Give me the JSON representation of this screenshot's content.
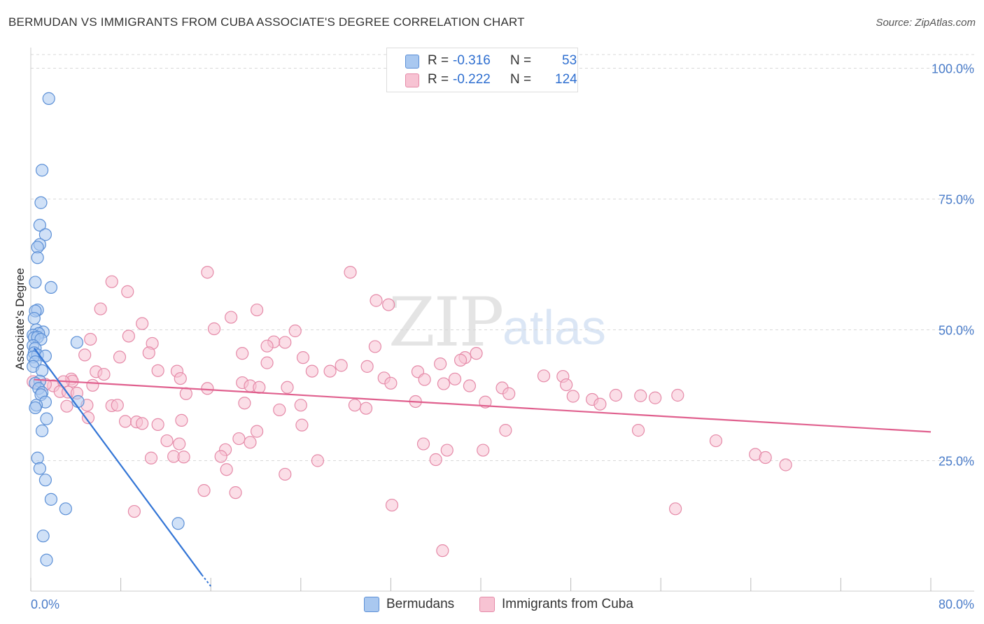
{
  "title": "BERMUDAN VS IMMIGRANTS FROM CUBA ASSOCIATE'S DEGREE CORRELATION CHART",
  "source": "Source: ZipAtlas.com",
  "watermark": {
    "zip": "ZIP",
    "atlas": "atlas"
  },
  "legend": {
    "rows": [
      {
        "r_label": "R =",
        "r_value": "-0.316",
        "n_label": "N =",
        "n_value": "53"
      },
      {
        "r_label": "R =",
        "r_value": "-0.222",
        "n_label": "N =",
        "n_value": "124"
      }
    ]
  },
  "bottom_legend": {
    "series1": "Bermudans",
    "series2": "Immigrants from Cuba"
  },
  "colors": {
    "blue_fill": "#a9c8f0",
    "blue_stroke": "#5b8fd6",
    "blue_line": "#3375d6",
    "pink_fill": "#f7c3d3",
    "pink_stroke": "#e58aa8",
    "pink_line": "#e0608e",
    "grid": "#d8d8d8",
    "tick_text": "#4a7cc9"
  },
  "chart_data": {
    "type": "scatter",
    "title": "BERMUDAN VS IMMIGRANTS FROM CUBA ASSOCIATE'S DEGREE CORRELATION CHART",
    "ylabel": "Associate's Degree",
    "xlim": [
      0,
      80
    ],
    "ylim": [
      0,
      102
    ],
    "x_ticks": [
      "0.0%",
      "80.0%"
    ],
    "y_ticks": [
      {
        "value": 25,
        "label": "25.0%"
      },
      {
        "value": 50,
        "label": "50.0%"
      },
      {
        "value": 75,
        "label": "75.0%"
      },
      {
        "value": 100,
        "label": "100.0%"
      }
    ],
    "grid": true,
    "series": [
      {
        "name": "Bermudans",
        "r": -0.316,
        "n": 53,
        "trend": {
          "x0": 0.3,
          "y0": 46.5,
          "x1": 15.2,
          "y1": 3.2,
          "dash_x1": 16.0,
          "dash_y1": 1.0
        },
        "points": [
          [
            1.6,
            94.2
          ],
          [
            1.0,
            80.5
          ],
          [
            0.9,
            74.3
          ],
          [
            0.8,
            70.0
          ],
          [
            1.3,
            68.2
          ],
          [
            0.8,
            66.3
          ],
          [
            0.6,
            65.8
          ],
          [
            0.6,
            63.8
          ],
          [
            0.4,
            59.1
          ],
          [
            1.8,
            58.1
          ],
          [
            0.6,
            53.8
          ],
          [
            0.4,
            53.6
          ],
          [
            0.3,
            52.2
          ],
          [
            0.5,
            50.0
          ],
          [
            1.1,
            49.6
          ],
          [
            0.7,
            49.3
          ],
          [
            0.2,
            49.0
          ],
          [
            0.3,
            48.5
          ],
          [
            0.6,
            48.6
          ],
          [
            0.9,
            48.2
          ],
          [
            4.1,
            47.6
          ],
          [
            0.2,
            47.0
          ],
          [
            0.4,
            46.5
          ],
          [
            0.3,
            45.6
          ],
          [
            0.6,
            45.2
          ],
          [
            0.2,
            44.8
          ],
          [
            1.3,
            45.0
          ],
          [
            0.4,
            43.9
          ],
          [
            0.2,
            43.0
          ],
          [
            1.0,
            42.2
          ],
          [
            0.8,
            40.2
          ],
          [
            0.4,
            39.8
          ],
          [
            0.7,
            38.8
          ],
          [
            1.0,
            38.0
          ],
          [
            0.9,
            37.6
          ],
          [
            1.3,
            36.2
          ],
          [
            4.2,
            36.3
          ],
          [
            0.5,
            35.6
          ],
          [
            0.4,
            35.1
          ],
          [
            1.4,
            33.0
          ],
          [
            1.0,
            30.7
          ],
          [
            0.6,
            25.5
          ],
          [
            0.8,
            23.5
          ],
          [
            1.3,
            21.3
          ],
          [
            1.8,
            17.6
          ],
          [
            3.1,
            15.8
          ],
          [
            13.1,
            13.0
          ],
          [
            1.1,
            10.6
          ],
          [
            1.4,
            6.0
          ]
        ]
      },
      {
        "name": "Immigrants from Cuba",
        "r": -0.222,
        "n": 124,
        "trend": {
          "x0": 0.3,
          "y0": 40.5,
          "x1": 80.0,
          "y1": 30.5
        },
        "points": [
          [
            15.7,
            61.0
          ],
          [
            28.4,
            61.0
          ],
          [
            7.2,
            59.2
          ],
          [
            8.6,
            57.3
          ],
          [
            30.7,
            55.6
          ],
          [
            31.8,
            54.8
          ],
          [
            6.2,
            54.0
          ],
          [
            20.1,
            53.8
          ],
          [
            17.8,
            52.4
          ],
          [
            9.9,
            51.2
          ],
          [
            16.3,
            50.2
          ],
          [
            23.5,
            49.8
          ],
          [
            8.7,
            48.8
          ],
          [
            5.3,
            48.2
          ],
          [
            21.6,
            47.7
          ],
          [
            22.6,
            47.6
          ],
          [
            10.8,
            47.4
          ],
          [
            21.0,
            46.9
          ],
          [
            30.6,
            46.8
          ],
          [
            10.5,
            45.6
          ],
          [
            4.8,
            45.2
          ],
          [
            7.9,
            44.8
          ],
          [
            18.8,
            45.5
          ],
          [
            39.6,
            45.5
          ],
          [
            24.2,
            44.7
          ],
          [
            38.6,
            44.7
          ],
          [
            38.2,
            44.2
          ],
          [
            21.0,
            43.7
          ],
          [
            36.4,
            43.5
          ],
          [
            27.6,
            43.2
          ],
          [
            29.9,
            43.0
          ],
          [
            11.3,
            42.2
          ],
          [
            5.8,
            42.0
          ],
          [
            13.0,
            42.1
          ],
          [
            25.0,
            42.1
          ],
          [
            26.6,
            42.1
          ],
          [
            34.4,
            42.0
          ],
          [
            6.5,
            41.5
          ],
          [
            45.6,
            41.2
          ],
          [
            47.3,
            41.1
          ],
          [
            13.3,
            40.7
          ],
          [
            37.7,
            40.6
          ],
          [
            35.0,
            40.5
          ],
          [
            31.4,
            40.8
          ],
          [
            3.6,
            40.6
          ],
          [
            3.7,
            40.2
          ],
          [
            2.9,
            40.1
          ],
          [
            18.8,
            39.9
          ],
          [
            2.0,
            39.3
          ],
          [
            5.5,
            39.4
          ],
          [
            19.5,
            39.3
          ],
          [
            1.3,
            39.6
          ],
          [
            32.0,
            39.8
          ],
          [
            36.7,
            39.7
          ],
          [
            39.0,
            39.3
          ],
          [
            47.6,
            39.5
          ],
          [
            20.3,
            39.0
          ],
          [
            22.8,
            39.0
          ],
          [
            41.9,
            38.9
          ],
          [
            15.7,
            38.8
          ],
          [
            2.6,
            38.2
          ],
          [
            3.3,
            38.1
          ],
          [
            4.1,
            37.9
          ],
          [
            13.8,
            37.8
          ],
          [
            42.5,
            37.8
          ],
          [
            48.2,
            37.3
          ],
          [
            49.9,
            36.7
          ],
          [
            52.0,
            37.5
          ],
          [
            54.2,
            37.4
          ],
          [
            57.5,
            37.5
          ],
          [
            55.5,
            37.0
          ],
          [
            34.2,
            36.3
          ],
          [
            40.4,
            36.2
          ],
          [
            19.0,
            36.0
          ],
          [
            7.2,
            35.5
          ],
          [
            5.0,
            35.6
          ],
          [
            7.7,
            35.6
          ],
          [
            3.2,
            35.4
          ],
          [
            24.0,
            35.6
          ],
          [
            29.8,
            35.0
          ],
          [
            22.1,
            34.7
          ],
          [
            28.8,
            35.6
          ],
          [
            50.6,
            35.8
          ],
          [
            5.1,
            33.2
          ],
          [
            8.4,
            32.5
          ],
          [
            9.4,
            32.4
          ],
          [
            9.9,
            32.1
          ],
          [
            13.4,
            32.7
          ],
          [
            11.3,
            31.9
          ],
          [
            24.1,
            31.8
          ],
          [
            20.1,
            30.6
          ],
          [
            42.2,
            30.8
          ],
          [
            54.0,
            30.8
          ],
          [
            18.5,
            29.2
          ],
          [
            12.1,
            28.8
          ],
          [
            19.5,
            28.5
          ],
          [
            34.9,
            28.2
          ],
          [
            13.2,
            28.2
          ],
          [
            60.9,
            28.8
          ],
          [
            17.3,
            27.1
          ],
          [
            37.0,
            27.0
          ],
          [
            40.2,
            27.0
          ],
          [
            16.9,
            25.8
          ],
          [
            10.7,
            25.5
          ],
          [
            12.7,
            25.8
          ],
          [
            13.6,
            25.7
          ],
          [
            36.0,
            25.2
          ],
          [
            25.5,
            25.0
          ],
          [
            64.4,
            26.2
          ],
          [
            65.3,
            25.6
          ],
          [
            67.1,
            24.2
          ],
          [
            17.4,
            23.3
          ],
          [
            22.6,
            22.4
          ],
          [
            15.4,
            19.3
          ],
          [
            18.2,
            18.9
          ],
          [
            32.1,
            16.5
          ],
          [
            57.3,
            15.8
          ],
          [
            9.2,
            15.3
          ],
          [
            36.6,
            7.8
          ],
          [
            0.2,
            40.1
          ]
        ]
      }
    ]
  }
}
